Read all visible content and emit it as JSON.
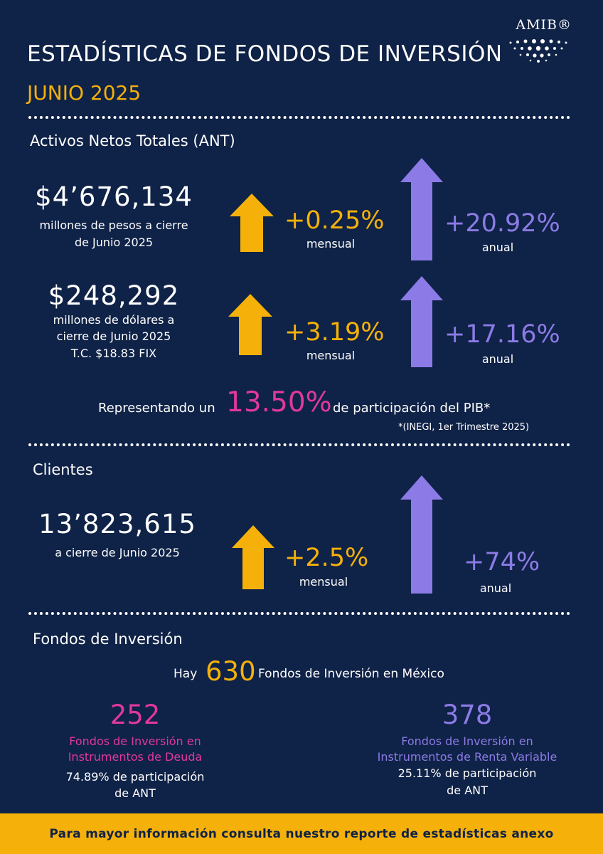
{
  "logo": {
    "text": "AMIB®"
  },
  "header": {
    "title": "ESTADÍSTICAS DE FONDOS DE INVERSIÓN",
    "period": "JUNIO 2025"
  },
  "ant": {
    "section_title": "Activos Netos Totales (ANT)",
    "pesos": {
      "amount": "$4’676,134",
      "caption_line1": "millones de pesos a cierre",
      "caption_line2": "de Junio 2025",
      "monthly_value": "+0.25%",
      "monthly_label": "mensual",
      "annual_value": "+20.92%",
      "annual_label": "anual"
    },
    "dolares": {
      "amount": "$248,292",
      "caption_line1": "millones de dólares a",
      "caption_line2": "cierre de Junio 2025",
      "caption_line3": "T.C. $18.83 FIX",
      "monthly_value": "+3.19%",
      "monthly_label": "mensual",
      "annual_value": "+17.16%",
      "annual_label": "anual"
    },
    "pib": {
      "prefix": "Representando un",
      "value": "13.50%",
      "suffix": "de participación del PIB*",
      "footnote": "*(INEGI, 1er  Trimestre 2025)"
    }
  },
  "clientes": {
    "section_title": "Clientes",
    "amount": "13’823,615",
    "caption": "a cierre de Junio 2025",
    "monthly_value": "+2.5%",
    "monthly_label": "mensual",
    "annual_value": "+74%",
    "annual_label": "anual"
  },
  "fondos": {
    "section_title": "Fondos de Inversión",
    "total_prefix": "Hay",
    "total_value": "630",
    "total_suffix": "Fondos de Inversión en México",
    "deuda": {
      "count": "252",
      "line1": "Fondos de Inversión en",
      "line2": "Instrumentos de Deuda",
      "share_line1": "74.89% de participación",
      "share_line2": "de ANT"
    },
    "renta_variable": {
      "count": "378",
      "line1": "Fondos de Inversión en",
      "line2": "Instrumentos de Renta Variable",
      "share_line1": "25.11% de participación",
      "share_line2": "de ANT"
    }
  },
  "footer": {
    "text": "Para mayor información consulta nuestro reporte de estadísticas anexo"
  },
  "colors": {
    "background": "#0f2247",
    "yellow": "#f5b10a",
    "purple": "#8c7be6",
    "pink": "#e0399b"
  }
}
